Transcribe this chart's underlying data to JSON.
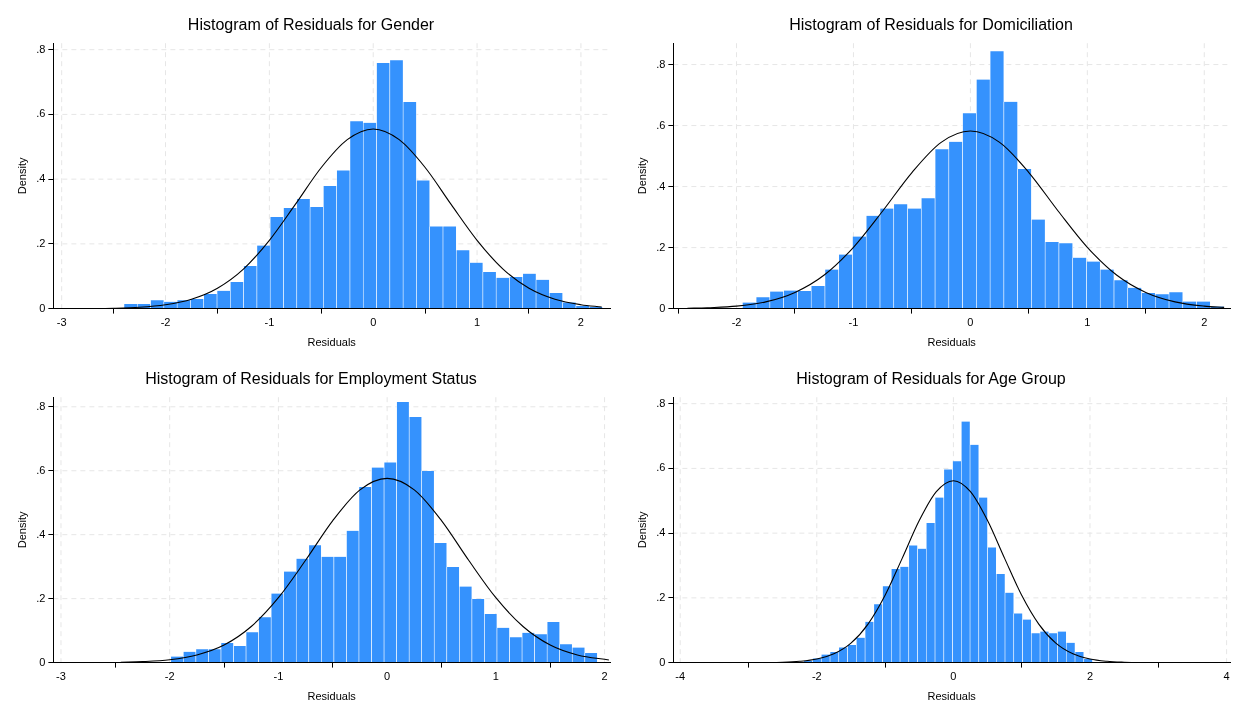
{
  "chart_data": [
    {
      "type": "histogram",
      "title": "Histogram of Residuals for Gender",
      "xlabel": "Residuals",
      "ylabel": "Density",
      "color": "#3592fd",
      "grid": true,
      "bins": [
        -2.4,
        -2.272,
        -2.144,
        -2.016,
        -1.888,
        -1.76,
        -1.632,
        -1.504,
        -1.376,
        -1.248,
        -1.12,
        -0.992,
        -0.864,
        -0.736,
        -0.608,
        -0.48,
        -0.352,
        -0.224,
        -0.096,
        0.032,
        0.16,
        0.288,
        0.416,
        0.544,
        0.672,
        0.8,
        0.928,
        1.056,
        1.184,
        1.312,
        1.44,
        1.568,
        1.696,
        1.824,
        1.952,
        2.08,
        2.208
      ],
      "values": [
        0.014,
        0.014,
        0.026,
        0.021,
        0.026,
        0.03,
        0.045,
        0.055,
        0.082,
        0.132,
        0.195,
        0.283,
        0.311,
        0.339,
        0.314,
        0.379,
        0.427,
        0.579,
        0.574,
        0.759,
        0.767,
        0.638,
        0.396,
        0.254,
        0.254,
        0.18,
        0.142,
        0.113,
        0.095,
        0.098,
        0.108,
        0.089,
        0.048,
        0.019,
        0.008,
        0.005
      ],
      "series": [
        {
          "type": "line",
          "color": "#000000",
          "x": [
            -2.79,
            -2.5,
            -2.25,
            -2,
            -1.75,
            -1.5,
            -1.25,
            -1,
            -0.75,
            -0.5,
            -0.25,
            0,
            0.25,
            0.5,
            0.75,
            1,
            1.25,
            1.5,
            1.75,
            2,
            2.2
          ],
          "values": [
            0,
            0.001,
            0.004,
            0.012,
            0.029,
            0.063,
            0.122,
            0.211,
            0.322,
            0.436,
            0.522,
            0.555,
            0.522,
            0.436,
            0.322,
            0.211,
            0.122,
            0.063,
            0.029,
            0.012,
            0.005
          ]
        }
      ],
      "xlim": [
        -3.08,
        2.28
      ],
      "xticks": [
        -3,
        -2,
        -1,
        0,
        1,
        2
      ],
      "ylim": [
        0,
        0.82
      ],
      "yticks": [
        {
          "value": 0,
          "label": "0"
        },
        {
          "value": 0.2,
          "label": ".2"
        },
        {
          "value": 0.4,
          "label": ".4"
        },
        {
          "value": 0.6,
          "label": ".6"
        },
        {
          "value": 0.8,
          "label": ".8"
        }
      ]
    },
    {
      "type": "histogram",
      "title": "Histogram of Residuals for Domiciliation",
      "xlabel": "Residuals",
      "ylabel": "Density",
      "color": "#3592fd",
      "grid": true,
      "bins": [
        -1.95,
        -1.832,
        -1.715,
        -1.597,
        -1.479,
        -1.361,
        -1.244,
        -1.126,
        -1.008,
        -0.891,
        -0.773,
        -0.655,
        -0.538,
        -0.42,
        -0.302,
        -0.184,
        -0.067,
        0.051,
        0.169,
        0.286,
        0.404,
        0.522,
        0.639,
        0.757,
        0.875,
        0.993,
        1.11,
        1.228,
        1.346,
        1.463,
        1.581,
        1.699,
        1.816,
        1.934,
        2.052,
        2.17
      ],
      "values": [
        0.02,
        0.037,
        0.056,
        0.059,
        0.058,
        0.074,
        0.128,
        0.177,
        0.236,
        0.304,
        0.328,
        0.342,
        0.328,
        0.362,
        0.522,
        0.547,
        0.64,
        0.751,
        0.844,
        0.678,
        0.458,
        0.292,
        0.218,
        0.214,
        0.167,
        0.154,
        0.128,
        0.093,
        0.068,
        0.051,
        0.047,
        0.054,
        0.023,
        0.023,
        0.007
      ],
      "series": [
        {
          "type": "line",
          "color": "#000000",
          "x": [
            -2.42,
            -2.25,
            -2,
            -1.75,
            -1.5,
            -1.25,
            -1,
            -0.75,
            -0.5,
            -0.25,
            0,
            0.25,
            0.5,
            0.75,
            1,
            1.25,
            1.5,
            1.75,
            2,
            2.17
          ],
          "values": [
            0.001,
            0.003,
            0.008,
            0.022,
            0.053,
            0.11,
            0.201,
            0.32,
            0.446,
            0.545,
            0.582,
            0.545,
            0.446,
            0.32,
            0.201,
            0.11,
            0.053,
            0.022,
            0.008,
            0.004
          ]
        }
      ],
      "xlim": [
        -2.54,
        2.22
      ],
      "xticks": [
        -2,
        -1,
        0,
        1,
        2
      ],
      "ylim": [
        0,
        0.87
      ],
      "yticks": [
        {
          "value": 0,
          "label": "0"
        },
        {
          "value": 0.2,
          "label": ".2"
        },
        {
          "value": 0.4,
          "label": ".4"
        },
        {
          "value": 0.6,
          "label": ".6"
        },
        {
          "value": 0.8,
          "label": ".8"
        }
      ]
    },
    {
      "type": "histogram",
      "title": "Histogram of Residuals for Employment Status",
      "xlabel": "Residuals",
      "ylabel": "Density",
      "color": "#3592fd",
      "grid": true,
      "bins": [
        -1.99,
        -1.875,
        -1.759,
        -1.644,
        -1.528,
        -1.413,
        -1.298,
        -1.182,
        -1.067,
        -0.951,
        -0.836,
        -0.721,
        -0.605,
        -0.49,
        -0.374,
        -0.259,
        -0.144,
        -0.028,
        0.087,
        0.203,
        0.318,
        0.433,
        0.549,
        0.664,
        0.78,
        0.895,
        1.01,
        1.126,
        1.241,
        1.357,
        1.472,
        1.587,
        1.703,
        1.818,
        1.934
      ],
      "values": [
        0.019,
        0.034,
        0.042,
        0.042,
        0.061,
        0.052,
        0.095,
        0.142,
        0.216,
        0.285,
        0.325,
        0.367,
        0.331,
        0.331,
        0.412,
        0.549,
        0.61,
        0.626,
        0.815,
        0.768,
        0.599,
        0.374,
        0.299,
        0.238,
        0.199,
        0.152,
        0.109,
        0.079,
        0.093,
        0.089,
        0.127,
        0.057,
        0.047,
        0.03
      ],
      "series": [
        {
          "type": "line",
          "color": "#000000",
          "x": [
            -2.45,
            -2.25,
            -2,
            -1.75,
            -1.5,
            -1.25,
            -1,
            -0.75,
            -0.5,
            -0.25,
            0,
            0.25,
            0.5,
            0.75,
            1,
            1.25,
            1.5,
            1.75,
            2.04
          ],
          "values": [
            0.001,
            0.003,
            0.009,
            0.024,
            0.055,
            0.113,
            0.203,
            0.32,
            0.444,
            0.54,
            0.576,
            0.54,
            0.444,
            0.32,
            0.203,
            0.113,
            0.055,
            0.024,
            0.008
          ]
        }
      ],
      "xlim": [
        -3.07,
        2.05
      ],
      "xticks": [
        -3,
        -2,
        -1,
        0,
        1,
        2
      ],
      "ylim": [
        0,
        0.83
      ],
      "yticks": [
        {
          "value": 0,
          "label": "0"
        },
        {
          "value": 0.2,
          "label": ".2"
        },
        {
          "value": 0.4,
          "label": ".4"
        },
        {
          "value": 0.6,
          "label": ".6"
        },
        {
          "value": 0.8,
          "label": ".8"
        }
      ]
    },
    {
      "type": "histogram",
      "title": "Histogram of Residuals for Age Group",
      "xlabel": "Residuals",
      "ylabel": "Density",
      "color": "#3592fd",
      "grid": true,
      "bins": [
        -2.19,
        -2.062,
        -1.934,
        -1.806,
        -1.678,
        -1.55,
        -1.421,
        -1.293,
        -1.165,
        -1.037,
        -0.909,
        -0.781,
        -0.653,
        -0.525,
        -0.397,
        -0.269,
        -0.14,
        -0.012,
        0.116,
        0.244,
        0.372,
        0.5,
        0.628,
        0.756,
        0.884,
        1.012,
        1.141,
        1.269,
        1.397,
        1.525,
        1.653,
        1.781,
        1.909,
        2.037
      ],
      "values": [
        0.006,
        0.013,
        0.025,
        0.033,
        0.047,
        0.054,
        0.077,
        0.126,
        0.18,
        0.236,
        0.289,
        0.296,
        0.362,
        0.352,
        0.431,
        0.51,
        0.597,
        0.622,
        0.745,
        0.673,
        0.51,
        0.356,
        0.274,
        0.216,
        0.152,
        0.133,
        0.091,
        0.096,
        0.091,
        0.096,
        0.061,
        0.033,
        0.011
      ],
      "series": [
        {
          "type": "line",
          "color": "#000000",
          "x": [
            -2.82,
            -2.5,
            -2.25,
            -2,
            -1.75,
            -1.5,
            -1.25,
            -1,
            -0.75,
            -0.5,
            -0.25,
            0,
            0.25,
            0.5,
            0.75,
            1,
            1.25,
            1.5,
            1.75,
            2,
            2.25,
            2.5,
            2.66
          ],
          "values": [
            0,
            0.001,
            0.004,
            0.011,
            0.027,
            0.06,
            0.119,
            0.208,
            0.322,
            0.439,
            0.528,
            0.562,
            0.528,
            0.439,
            0.322,
            0.208,
            0.119,
            0.06,
            0.027,
            0.011,
            0.004,
            0.001,
            0
          ]
        }
      ],
      "xlim": [
        -4.1,
        4.05
      ],
      "xticks": [
        -4,
        -2,
        0,
        2,
        4
      ],
      "ylim": [
        0,
        0.82
      ],
      "yticks": [
        {
          "value": 0,
          "label": "0"
        },
        {
          "value": 0.2,
          "label": ".2"
        },
        {
          "value": 0.4,
          "label": ".4"
        },
        {
          "value": 0.6,
          "label": ".6"
        },
        {
          "value": 0.8,
          "label": ".8"
        }
      ]
    }
  ]
}
